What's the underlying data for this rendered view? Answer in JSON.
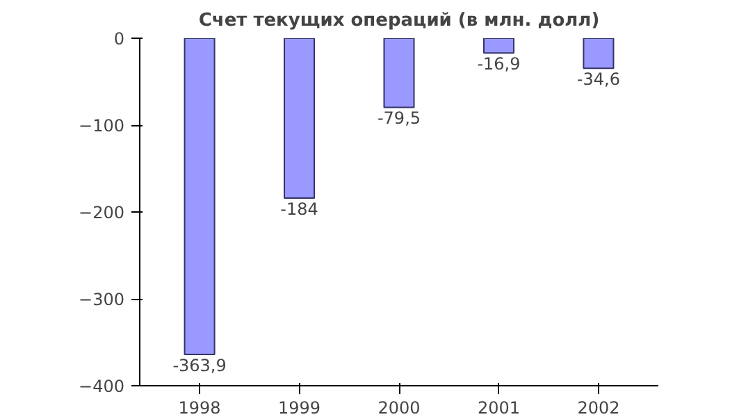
{
  "chart_data": {
    "type": "bar",
    "title": "Счет текущих операций (в млн. долл)",
    "categories": [
      "1998",
      "1999",
      "2000",
      "2001",
      "2002"
    ],
    "values": [
      -363.9,
      -184,
      -79.5,
      -16.9,
      -34.6
    ],
    "value_labels": [
      "-363,9",
      "-184",
      "-79,5",
      "-16,9",
      "-34,6"
    ],
    "color": "#9999ff",
    "ylim": [
      -400,
      0
    ],
    "yticks": [
      0,
      -100,
      -200,
      -300,
      -400
    ],
    "grid": false
  }
}
